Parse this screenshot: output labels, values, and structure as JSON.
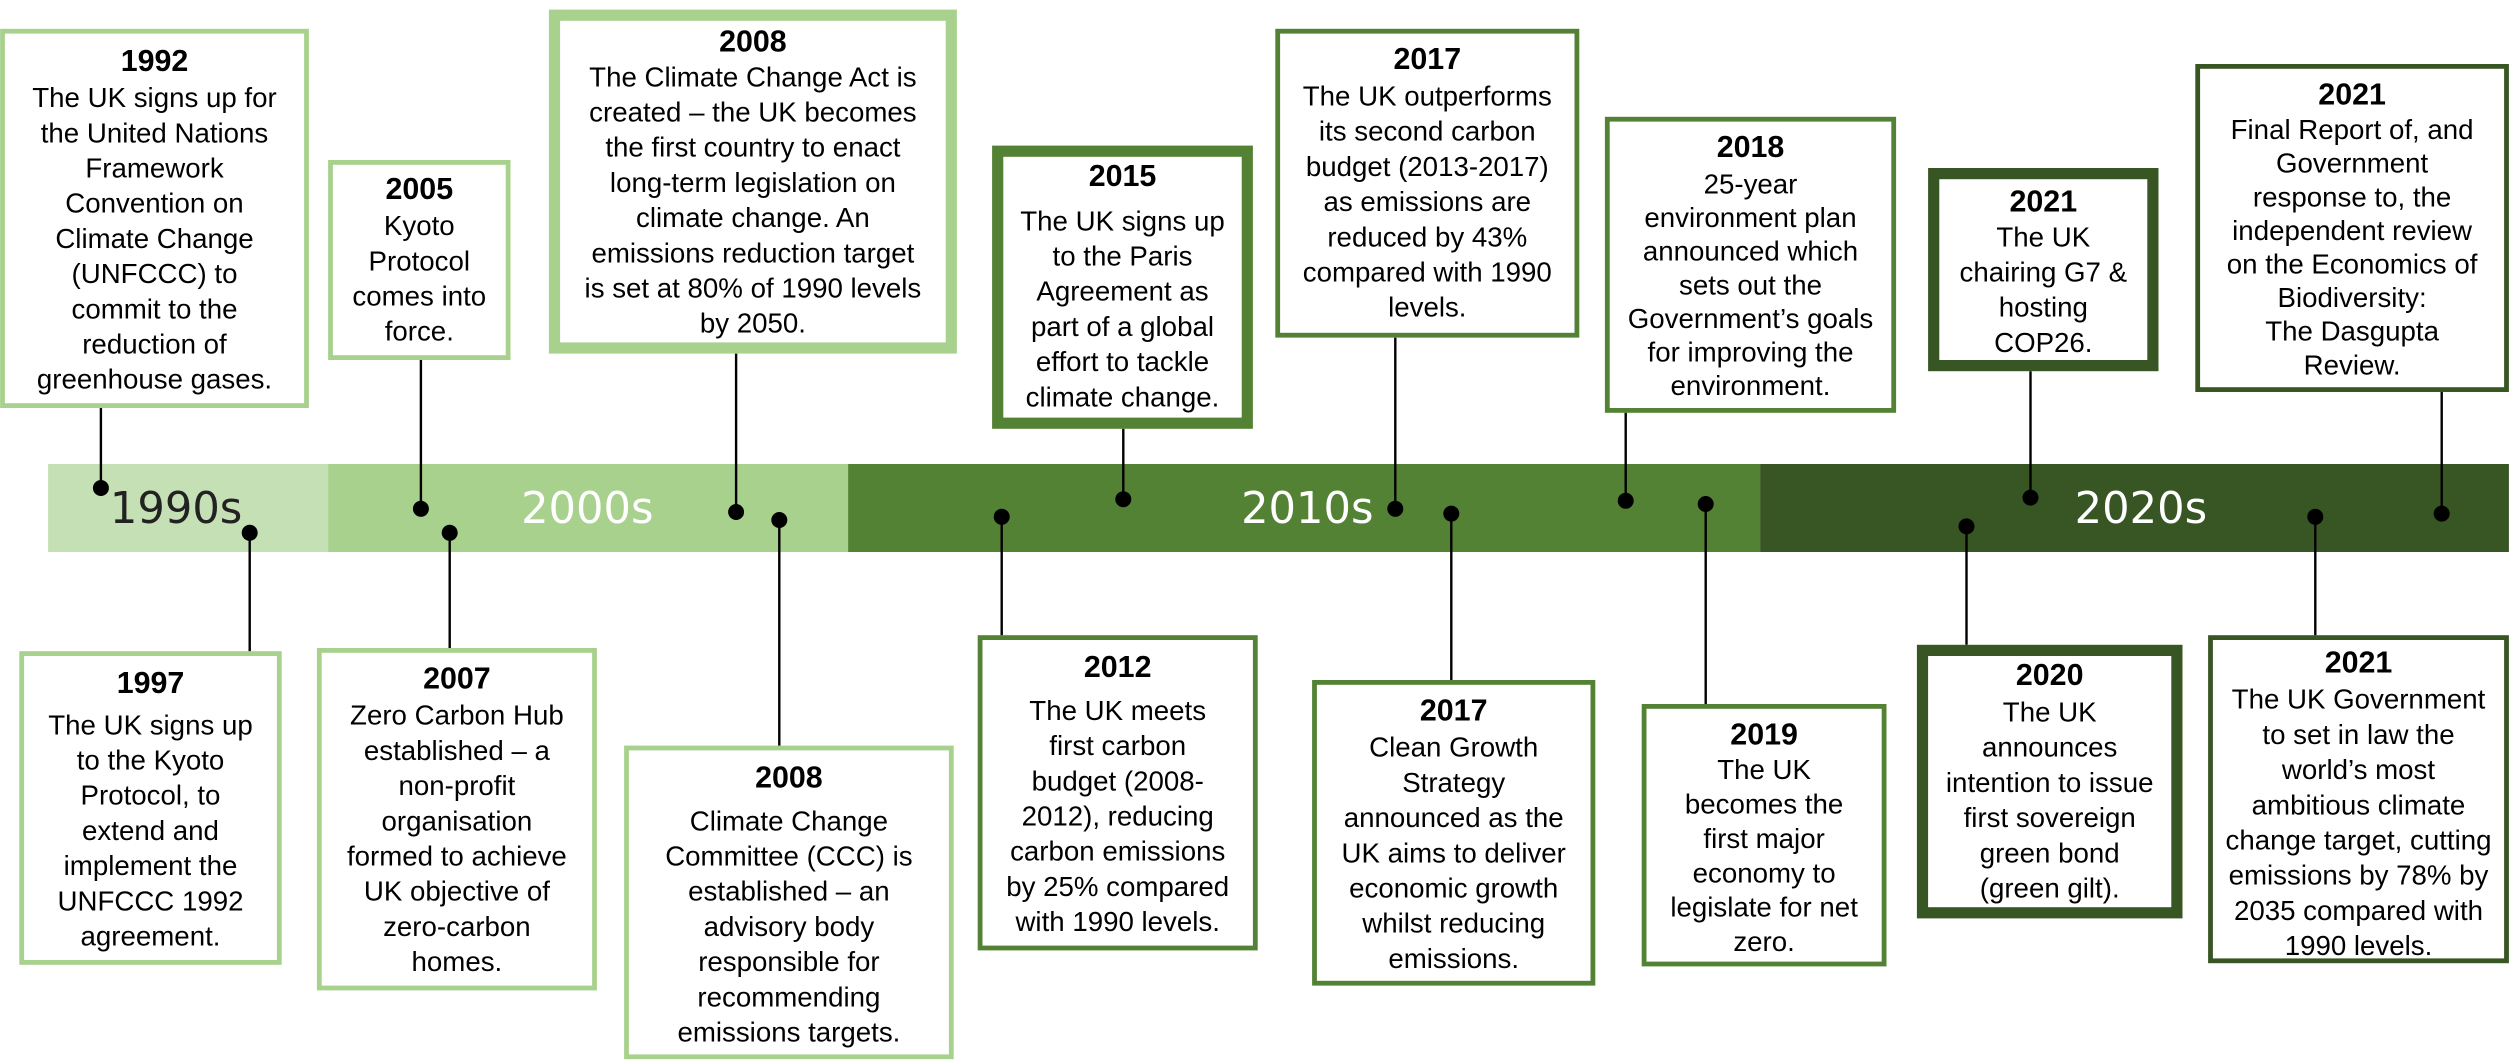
{
  "eras": [
    {
      "label": "1990s"
    },
    {
      "label": "2000s"
    },
    {
      "label": "2010s"
    },
    {
      "label": "2020s"
    }
  ],
  "events": [
    {
      "year": "1992",
      "lines": [
        "The UK signs up for",
        "the United Nations",
        "Framework",
        "Convention on",
        "Climate Change",
        "(UNFCCC)  to",
        "commit to the",
        "reduction of",
        "greenhouse gases."
      ]
    },
    {
      "year": "2005",
      "lines": [
        "Kyoto",
        "Protocol",
        "comes into",
        "force."
      ]
    },
    {
      "year": "2008",
      "lines": [
        "The Climate Change Act is",
        "created – the UK becomes",
        "the first country to enact",
        "long-term legislation on",
        "climate change. An",
        "emissions reduction target",
        "is set at 80% of 1990 levels",
        "by 2050."
      ]
    },
    {
      "year": "2015",
      "lines": [
        "The UK signs up",
        "to the Paris",
        "Agreement as",
        "part of a global",
        "effort to tackle",
        "climate change."
      ]
    },
    {
      "year": "2017",
      "lines": [
        "The UK outperforms",
        "its second carbon",
        "budget (2013-2017)",
        "as emissions are",
        "reduced by 43%",
        "compared with 1990",
        "levels."
      ]
    },
    {
      "year": "2018",
      "lines": [
        "25-year",
        "environment plan",
        "announced which",
        "sets out the",
        "Government’s goals",
        "for improving the",
        "environment."
      ]
    },
    {
      "year": "2021",
      "lines": [
        "The UK",
        "chairing G7 &",
        "hosting",
        "COP26."
      ]
    },
    {
      "year": "2021",
      "lines": [
        "Final Report of, and",
        "Government",
        "response to, the",
        "independent review",
        "on the  Economics of",
        "Biodiversity:",
        "The Dasgupta",
        "Review."
      ]
    },
    {
      "year": "1997",
      "lines": [
        "The UK signs up",
        "to the Kyoto",
        "Protocol, to",
        "extend and",
        "implement the",
        "UNFCCC 1992",
        "agreement."
      ]
    },
    {
      "year": "2007",
      "lines": [
        "Zero Carbon Hub",
        "established – a",
        "non-profit",
        "organisation",
        "formed to achieve",
        "UK objective of",
        "zero-carbon",
        "homes."
      ]
    },
    {
      "year": "2008",
      "lines": [
        "Climate Change",
        "Committee (CCC) is",
        "established – an",
        "advisory body",
        "responsible for",
        "recommending",
        "emissions targets."
      ]
    },
    {
      "year": "2012",
      "lines": [
        "The UK meets",
        "first carbon",
        "budget (2008-",
        "2012), reducing",
        "carbon emissions",
        "by 25% compared",
        "with 1990 levels."
      ]
    },
    {
      "year": "2017",
      "lines": [
        "Clean Growth",
        "Strategy",
        "announced as the",
        "UK aims to deliver",
        "economic growth",
        "whilst reducing",
        "emissions."
      ]
    },
    {
      "year": "2019",
      "lines": [
        "The UK",
        "becomes the",
        "first major",
        "economy to",
        "legislate for net",
        "zero."
      ]
    },
    {
      "year": "2020",
      "lines": [
        "The UK",
        "announces",
        "intention to issue",
        "first sovereign",
        "green bond",
        "(green gilt)."
      ]
    },
    {
      "year": "2021",
      "lines": [
        "The UK Government",
        "to set in law the",
        "world’s most",
        "ambitious climate",
        "change target, cutting",
        "emissions by 78% by",
        "2035 compared with",
        "1990 levels."
      ]
    }
  ]
}
